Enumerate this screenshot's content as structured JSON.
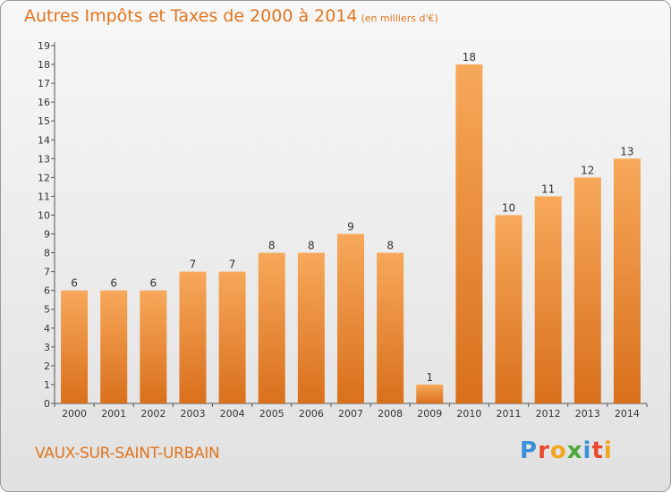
{
  "chart_data": {
    "type": "bar",
    "title": "Autres Impôts et Taxes de 2000 à 2014",
    "unit_label": "(en milliers d'€)",
    "categories": [
      "2000",
      "2001",
      "2002",
      "2003",
      "2004",
      "2005",
      "2006",
      "2007",
      "2008",
      "2009",
      "2010",
      "2011",
      "2012",
      "2013",
      "2014"
    ],
    "values": [
      6,
      6,
      6,
      7,
      7,
      8,
      8,
      9,
      8,
      1,
      18,
      10,
      11,
      12,
      13
    ],
    "ylim": [
      0,
      19
    ],
    "yticks": [
      0,
      1,
      2,
      3,
      4,
      5,
      6,
      7,
      8,
      9,
      10,
      11,
      12,
      13,
      14,
      15,
      16,
      17,
      18,
      19
    ],
    "xlabel": "",
    "ylabel": "",
    "bar_color_top": "#f7a85a",
    "bar_color_bottom": "#d9701c",
    "grid": false,
    "legend": "none"
  },
  "footer": {
    "commune": "VAUX-SUR-SAINT-URBAIN",
    "logo_letters": [
      "P",
      "r",
      "o",
      "x",
      "i",
      "t",
      "i"
    ]
  },
  "colors": {
    "accent": "#e0751f",
    "logo": [
      "#3a8fd8",
      "#e8492f",
      "#f2a51f",
      "#4caa3c",
      "#3a8fd8",
      "#e8492f",
      "#f2a51f"
    ]
  }
}
